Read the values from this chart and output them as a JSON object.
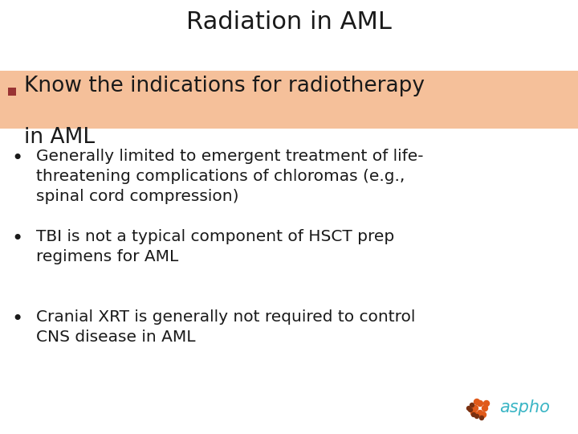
{
  "title": "Radiation in AML",
  "title_fontsize": 22,
  "title_color": "#1a1a1a",
  "background_color": "#ffffff",
  "highlight_bg": "#f5c09a",
  "highlight_text_line1": "Know the indications for radiotherapy",
  "highlight_text_line2": "in AML",
  "highlight_square_color": "#993333",
  "highlight_fontsize": 19,
  "bullet_fontsize": 14.5,
  "bullet_color": "#1a1a1a",
  "bullet_points": [
    "Generally limited to emergent treatment of life-\nthreatening complications of chloromas (e.g.,\nspinal cord compression)",
    "TBI is not a typical component of HSCT prep\nregimens for AML",
    "Cranial XRT is generally not required to control\nCNS disease in AML"
  ],
  "aspho_text": "aspho",
  "aspho_color": "#3ab5c5",
  "aspho_fontsize": 15,
  "aspho_dot_orange": "#e05a1a",
  "aspho_dot_brown": "#7a3010"
}
